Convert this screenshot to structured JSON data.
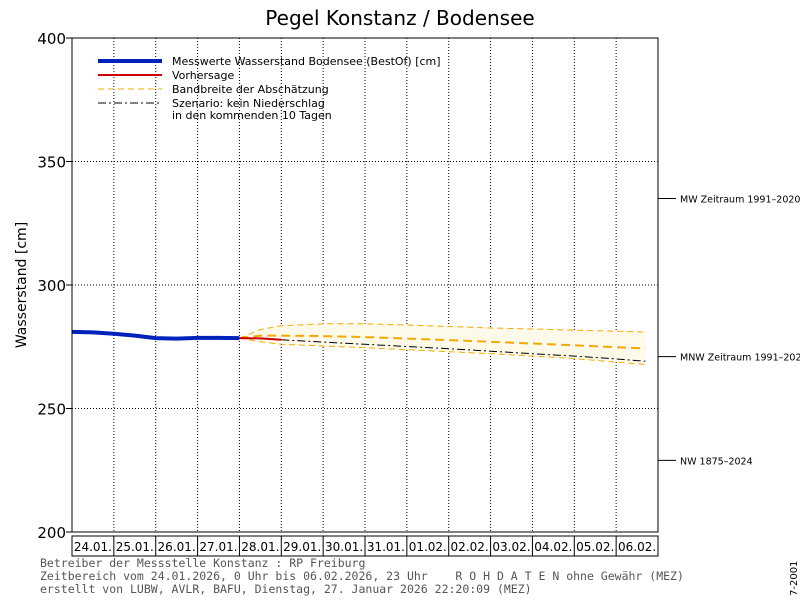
{
  "chart_data": {
    "type": "line",
    "title": "Pegel Konstanz / Bodensee",
    "ylabel": "Wasserstand [cm]",
    "xlabel": "",
    "ylim": [
      200,
      400
    ],
    "yticks": [
      200,
      250,
      300,
      350,
      400
    ],
    "x_days": [
      "24.01.",
      "25.01.",
      "26.01.",
      "27.01.",
      "28.01.",
      "29.01.",
      "30.01.",
      "31.01.",
      "01.02.",
      "02.02.",
      "03.02.",
      "04.02.",
      "05.02.",
      "06.02."
    ],
    "x_range_days": [
      0,
      14
    ],
    "grid": true,
    "legend": [
      {
        "label": "Messwerte Wasserstand Bodensee  (BestOf)  [cm]",
        "color": "#0022bb",
        "style": "solid-thick"
      },
      {
        "label": "Vorhersage",
        "color": "#cc0000",
        "style": "solid"
      },
      {
        "label": "Bandbreite der Abschätzung",
        "color": "#f5a800",
        "style": "dashed"
      },
      {
        "label": "Szenario: kein Niederschlag\nin den kommenden 10 Tagen",
        "color": "#000000",
        "style": "dashdot"
      }
    ],
    "series": [
      {
        "name": "Messwerte Wasserstand Bodensee",
        "x": [
          0,
          0.5,
          1,
          1.5,
          2,
          2.5,
          3,
          3.5,
          4
        ],
        "values": [
          281,
          280.8,
          280.3,
          279.5,
          278.5,
          278.3,
          278.6,
          278.6,
          278.5
        ]
      },
      {
        "name": "Vorhersage",
        "x": [
          4,
          4.5,
          5
        ],
        "values": [
          278.5,
          278.4,
          277.8
        ]
      },
      {
        "name": "Bandbreite obere Grenze",
        "x": [
          4,
          4.5,
          5,
          6,
          7,
          8,
          9,
          10,
          11,
          12,
          13,
          13.7
        ],
        "values": [
          278.5,
          282,
          283.5,
          284.3,
          284.3,
          283.8,
          283.2,
          282.6,
          282.2,
          281.7,
          281.3,
          281
        ]
      },
      {
        "name": "Bandbreite mittlere Schätzung",
        "x": [
          4,
          4.5,
          5,
          6,
          7,
          8,
          9,
          10,
          11,
          12,
          13,
          13.7
        ],
        "values": [
          278.5,
          279.5,
          279.5,
          279.3,
          278.9,
          278.3,
          277.7,
          277,
          276.3,
          275.6,
          274.8,
          274.3
        ]
      },
      {
        "name": "Bandbreite untere Grenze",
        "x": [
          4,
          4.5,
          5,
          6,
          7,
          8,
          9,
          10,
          11,
          12,
          13,
          13.7
        ],
        "values": [
          278.5,
          277,
          276,
          275.3,
          274.6,
          273.8,
          273,
          272.2,
          271.2,
          270.2,
          268.8,
          267.8
        ]
      },
      {
        "name": "Szenario kein Niederschlag",
        "x": [
          5,
          6,
          7,
          8,
          9,
          10,
          11,
          12,
          13,
          13.7
        ],
        "values": [
          277.8,
          276.9,
          276,
          275.1,
          274.2,
          273.2,
          272.2,
          271.2,
          270.1,
          269.1
        ]
      }
    ],
    "reference_levels": [
      {
        "label": "MW Zeitraum 1991–2020",
        "value": 335
      },
      {
        "label": "MNW Zeitraum 1991–2020",
        "value": 271
      },
      {
        "label": "NW 1875–2024",
        "value": 229
      }
    ]
  },
  "footer": {
    "operator": "Betreiber der Messstelle Konstanz : RP Freiburg",
    "timerange": "Zeitbereich vom 24.01.2026, 0 Uhr bis 06.02.2026, 23 Uhr    R O H D A T E N ohne Gewähr (MEZ)",
    "created": "erstellt von LUBW, AVLR, BAFU, Dienstag, 27. Januar 2026 22:20:09 (MEZ)",
    "code": "7-2001"
  },
  "colors": {
    "measured": "#0022bb",
    "forecast": "#cc0000",
    "band": "#f5a800",
    "band_fill": "#fdfaea",
    "scenario": "#000000"
  }
}
